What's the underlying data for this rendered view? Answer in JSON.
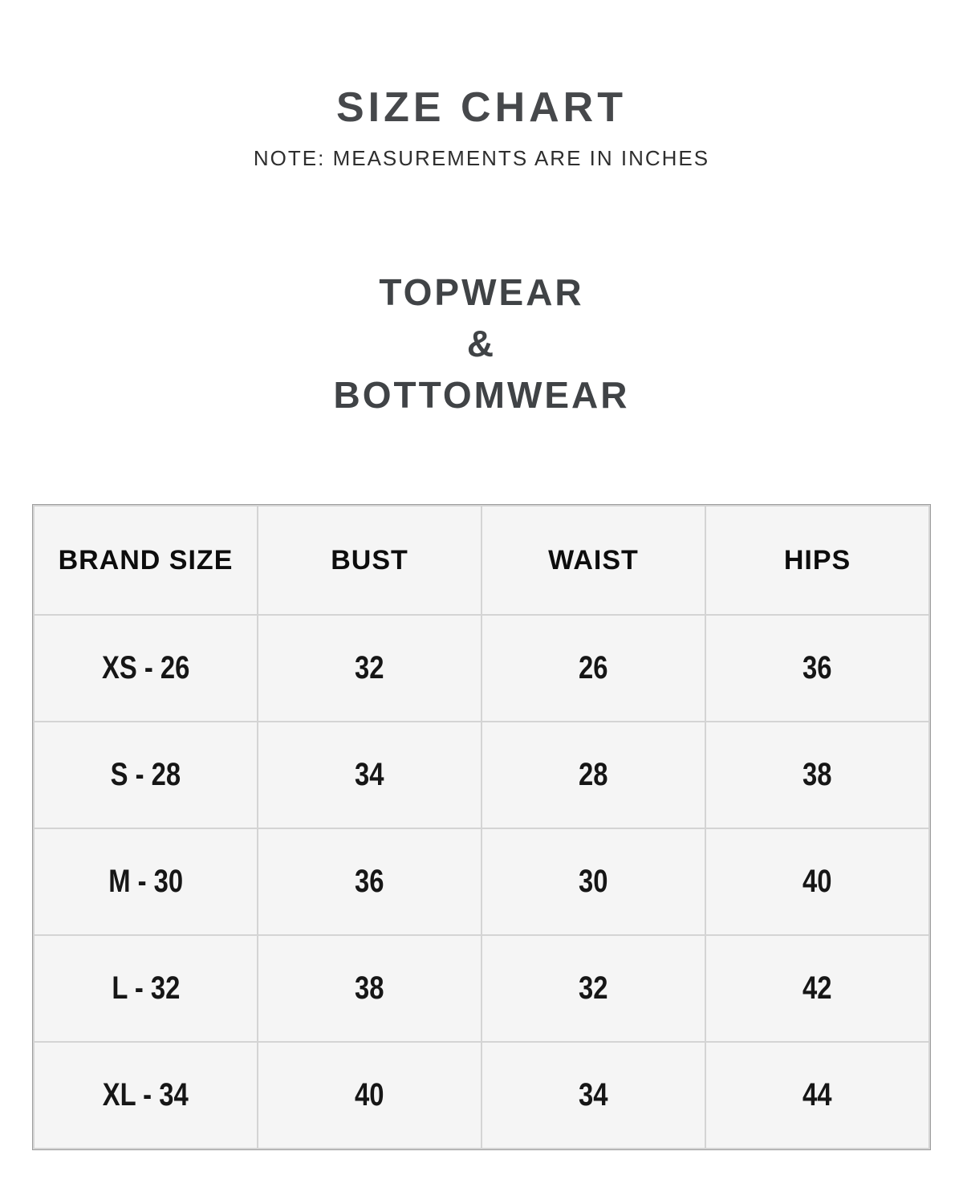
{
  "page": {
    "title": "SIZE CHART",
    "note": "NOTE: MEASUREMENTS ARE IN INCHES",
    "section_lines": [
      "TOPWEAR",
      "&",
      "BOTTOMWEAR"
    ]
  },
  "chart_data": {
    "type": "table",
    "title": "SIZE CHART",
    "subtitle": "NOTE: MEASUREMENTS ARE IN INCHES",
    "section": "TOPWEAR & BOTTOMWEAR",
    "units": "inches",
    "columns": [
      "BRAND SIZE",
      "BUST",
      "WAIST",
      "HIPS"
    ],
    "rows": [
      [
        "XS - 26",
        "32",
        "26",
        "36"
      ],
      [
        "S - 28",
        "34",
        "28",
        "38"
      ],
      [
        "M - 30",
        "36",
        "30",
        "40"
      ],
      [
        "L - 32",
        "38",
        "32",
        "42"
      ],
      [
        "XL - 34",
        "40",
        "34",
        "44"
      ]
    ]
  },
  "colors": {
    "page-bg": "#ffffff",
    "title-text": "#46484b",
    "note-text": "#2e2e2e",
    "heading-text": "#404346",
    "cell-bg": "#f5f5f5",
    "header-text": "#0d0d0d",
    "cell-text": "#161616",
    "border-inner": "#d4d4d4",
    "border-outer": "#9d9d9d"
  }
}
